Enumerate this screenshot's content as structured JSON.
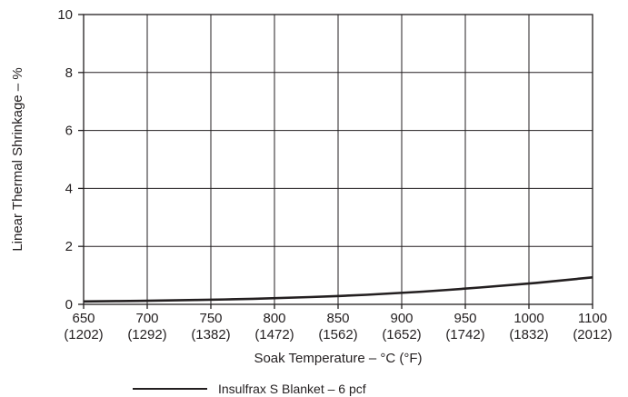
{
  "chart_data": {
    "type": "line",
    "xlabel": "Soak Temperature – °C (°F)",
    "ylabel": "Linear Thermal Shrinkage – %",
    "xlim": [
      650,
      1100
    ],
    "ylim": [
      0,
      10
    ],
    "grid": true,
    "legend_position": "bottom-center",
    "x_ticks": [
      {
        "c": "650",
        "f": "(1202)"
      },
      {
        "c": "700",
        "f": "(1292)"
      },
      {
        "c": "750",
        "f": "(1382)"
      },
      {
        "c": "800",
        "f": "(1472)"
      },
      {
        "c": "850",
        "f": "(1562)"
      },
      {
        "c": "900",
        "f": "(1652)"
      },
      {
        "c": "950",
        "f": "(1742)"
      },
      {
        "c": "1000",
        "f": "(1832)"
      },
      {
        "c": "1100",
        "f": "(2012)"
      }
    ],
    "y_ticks": [
      "0",
      "2",
      "4",
      "6",
      "8",
      "10"
    ],
    "series": [
      {
        "name": "Insulfrax S Blanket – 6 pcf",
        "color": "#231f20",
        "x": [
          650,
          700,
          750,
          800,
          850,
          900,
          950,
          1000,
          1050,
          1100
        ],
        "y": [
          0.1,
          0.12,
          0.15,
          0.19,
          0.25,
          0.33,
          0.44,
          0.58,
          0.74,
          0.93
        ]
      }
    ]
  }
}
